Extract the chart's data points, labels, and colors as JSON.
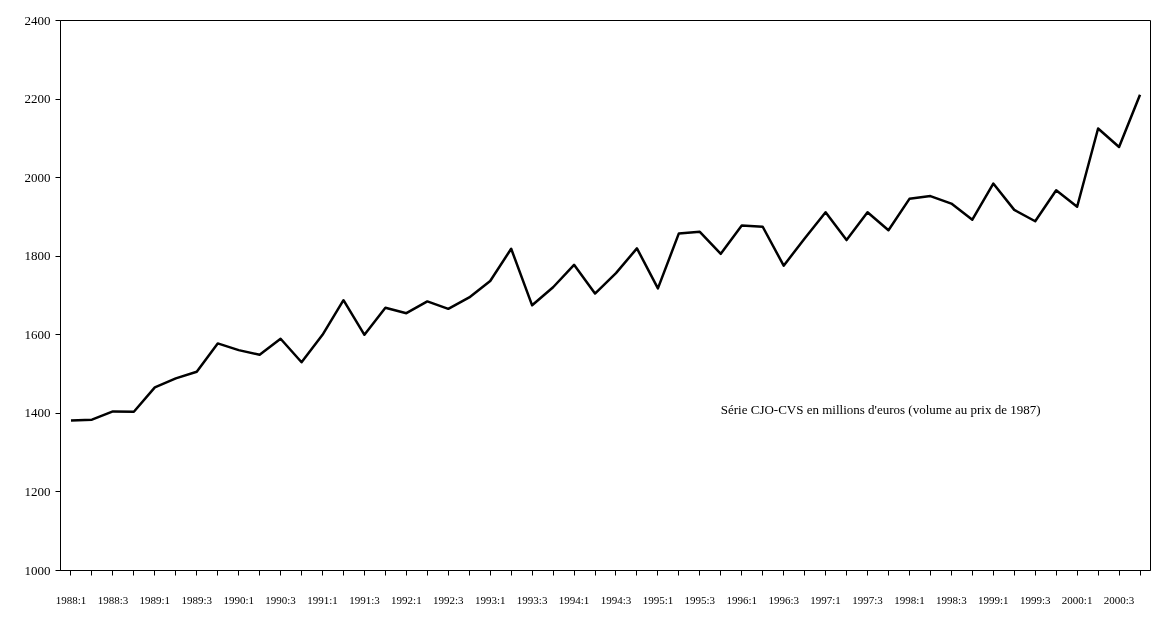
{
  "chart_data": {
    "type": "line",
    "categories": [
      "1988:1",
      null,
      "1988:3",
      null,
      "1989:1",
      null,
      "1989:3",
      null,
      "1990:1",
      null,
      "1990:3",
      null,
      "1991:1",
      null,
      "1991:3",
      null,
      "1992:1",
      null,
      "1992:3",
      null,
      "1993:1",
      null,
      "1993:3",
      null,
      "1994:1",
      null,
      "1994:3",
      null,
      "1995:1",
      null,
      "1995:3",
      null,
      "1996:1",
      null,
      "1996:3",
      null,
      "1997:1",
      null,
      "1997:3",
      null,
      "1998:1",
      null,
      "1998:3",
      null,
      "1999:1",
      null,
      "1999:3",
      null,
      "2000:1",
      null,
      "2000:3",
      null
    ],
    "series": [
      {
        "color": "#000000",
        "values": [
          1382,
          1384,
          1405,
          1404,
          1466,
          1489,
          1506,
          1578,
          1561,
          1549,
          1590,
          1530,
          1600,
          1688,
          1600,
          1669,
          1655,
          1685,
          1666,
          1695,
          1737,
          1819,
          1675,
          1721,
          1778,
          1705,
          1757,
          1820,
          1718,
          1858,
          1862,
          1806,
          1878,
          1875,
          1776,
          1845,
          1912,
          1841,
          1912,
          1866,
          1946,
          1953,
          1934,
          1893,
          1985,
          1918,
          1889,
          1968,
          1926,
          2125,
          2078,
          2211
        ]
      }
    ],
    "ylim": [
      1000,
      2400
    ],
    "yticks": [
      1000,
      1200,
      1400,
      1600,
      1800,
      2000,
      2200,
      2400
    ],
    "grid": false,
    "marker": "none",
    "line_style": "solid",
    "annotations": [
      "Série CJO-CVS en millions d'euros (volume au prix de 1987)"
    ]
  }
}
